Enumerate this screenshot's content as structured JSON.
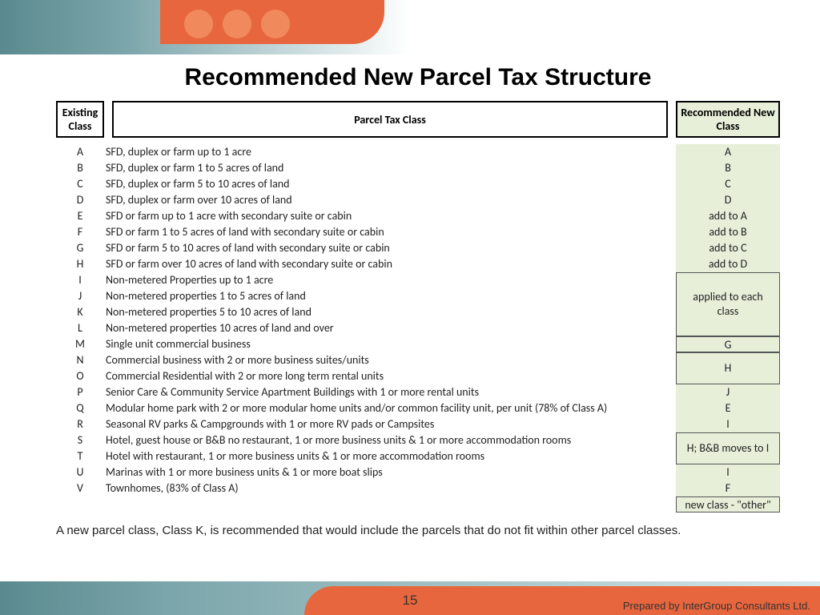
{
  "title": "Recommended New Parcel Tax Structure",
  "headers": {
    "existing": "Existing Class",
    "parcel": "Parcel Tax Class",
    "recommended": "Recommended New Class"
  },
  "rows": [
    {
      "e": "A",
      "d": "SFD, duplex or farm up to 1 acre"
    },
    {
      "e": "B",
      "d": "SFD, duplex or farm 1 to 5 acres of land"
    },
    {
      "e": "C",
      "d": "SFD, duplex or farm 5 to 10 acres of land"
    },
    {
      "e": "D",
      "d": "SFD, duplex or farm over 10 acres of land"
    },
    {
      "e": "E",
      "d": "SFD or farm up to 1 acre with secondary suite or cabin"
    },
    {
      "e": "F",
      "d": "SFD or farm 1 to 5 acres of land with secondary suite or cabin"
    },
    {
      "e": "G",
      "d": "SFD or farm 5 to 10 acres of land with secondary suite or cabin"
    },
    {
      "e": "H",
      "d": "SFD or farm over 10 acres of land with secondary suite or cabin"
    },
    {
      "e": "I",
      "d": "Non-metered Properties up to 1 acre"
    },
    {
      "e": "J",
      "d": "Non-metered properties 1 to 5 acres of land"
    },
    {
      "e": "K",
      "d": "Non-metered properties 5 to 10 acres of land"
    },
    {
      "e": "L",
      "d": "Non-metered properties 10 acres of land and over"
    },
    {
      "e": "M",
      "d": "Single unit commercial business"
    },
    {
      "e": "N",
      "d": "Commercial business with 2 or more business suites/units"
    },
    {
      "e": "O",
      "d": "Commercial Residential with 2 or more long term rental units"
    },
    {
      "e": "P",
      "d": "Senior Care & Community Service Apartment Buildings with 1 or more rental units"
    },
    {
      "e": "Q",
      "d": "Modular home park with 2 or more modular home units and/or common facility unit, per unit (78% of Class A)"
    },
    {
      "e": "R",
      "d": "Seasonal RV parks & Campgrounds with 1 or more RV pads or Campsites"
    },
    {
      "e": "S",
      "d": "Hotel, guest house or B&B no restaurant, 1 or more business units & 1 or more accommodation rooms"
    },
    {
      "e": "T",
      "d": "Hotel with restaurant, 1 or more business units & 1 or more accommodation rooms"
    },
    {
      "e": "U",
      "d": "Marinas with 1 or more business units & 1 or more boat slips"
    },
    {
      "e": "V",
      "d": "Townhomes, (83% of Class A)"
    }
  ],
  "rec": [
    {
      "t": "A",
      "span": 1,
      "boxed": false
    },
    {
      "t": "B",
      "span": 1,
      "boxed": false
    },
    {
      "t": "C",
      "span": 1,
      "boxed": false
    },
    {
      "t": "D",
      "span": 1,
      "boxed": false
    },
    {
      "t": "add to A",
      "span": 1,
      "boxed": false
    },
    {
      "t": "add to B",
      "span": 1,
      "boxed": false
    },
    {
      "t": "add to C",
      "span": 1,
      "boxed": false
    },
    {
      "t": "add to D",
      "span": 1,
      "boxed": false
    },
    {
      "t": "applied to each class",
      "span": 4,
      "boxed": true
    },
    {
      "t": "G",
      "span": 1,
      "boxed": true
    },
    {
      "t": "H",
      "span": 2,
      "boxed": true
    },
    {
      "t": "J",
      "span": 1,
      "boxed": false
    },
    {
      "t": "E",
      "span": 1,
      "boxed": false
    },
    {
      "t": "I",
      "span": 1,
      "boxed": false
    },
    {
      "t": "H; B&B moves to I",
      "span": 2,
      "boxed": true
    },
    {
      "t": "I",
      "span": 1,
      "boxed": false
    },
    {
      "t": "F",
      "span": 1,
      "boxed": false
    },
    {
      "t": "new class - \"other\"",
      "span": 1,
      "boxed": true
    }
  ],
  "note": "A new parcel class, Class K, is recommended that would include the parcels that do not fit within other parcel classes.",
  "page_number": "15",
  "credit": "Prepared by InterGroup Consultants Ltd.",
  "colors": {
    "orange": "#e8663d",
    "teal": "#5a8a8f",
    "green_bg": "#e7efd9"
  }
}
